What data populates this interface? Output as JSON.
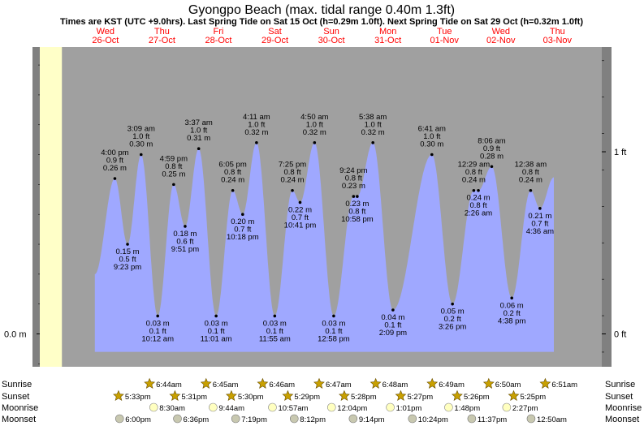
{
  "title": "Gyongpo Beach (max. tidal range 0.40m 1.3ft)",
  "subtitle": "Times are KST (UTC +9.0hrs). Last Spring Tide on Sat 15 Oct (h=0.29m 1.0ft). Next Spring Tide on Sat 29 Oct (h=0.32m 1.0ft)",
  "days": [
    {
      "dow": "Wed",
      "date": "26-Oct"
    },
    {
      "dow": "Thu",
      "date": "27-Oct"
    },
    {
      "dow": "Fri",
      "date": "28-Oct"
    },
    {
      "dow": "Sat",
      "date": "29-Oct"
    },
    {
      "dow": "Sun",
      "date": "30-Oct"
    },
    {
      "dow": "Mon",
      "date": "31-Oct"
    },
    {
      "dow": "Tue",
      "date": "01-Nov"
    },
    {
      "dow": "Wed",
      "date": "02-Nov"
    },
    {
      "dow": "Thu",
      "date": "03-Nov"
    }
  ],
  "colors": {
    "day": "#ffffc8",
    "night": "#a0a0a0",
    "water": "#9fa8ff",
    "frame_dark": "#808080",
    "day_label": "#ff0000",
    "star": "#c8a000",
    "moon_rise": "#ffffc0",
    "moon_set": "#c8c8b0"
  },
  "chart_data": {
    "type": "area",
    "x_unit": "hours from Wed 26-Oct 00:00 KST",
    "left_axis": {
      "ticks": [
        {
          "value": 0,
          "label": "0.0 m"
        }
      ]
    },
    "right_axis": {
      "ticks": [
        {
          "value": 0,
          "label": "0 ft"
        },
        {
          "value": 0.3048,
          "label": "1 ft"
        }
      ]
    },
    "ylim": [
      -0.055,
      0.48
    ],
    "xlim": [
      -19,
      227
    ],
    "data_start": 7.5,
    "data_end": 202.5,
    "extremes": [
      {
        "t": "4:00 pm",
        "m": "0.26 m",
        "f": "0.9 ft",
        "h": 0.26,
        "x": 16.0,
        "pos": "above"
      },
      {
        "t": "9:23 pm",
        "m": "0.15 m",
        "f": "0.5 ft",
        "h": 0.15,
        "x": 21.38,
        "pos": "below"
      },
      {
        "t": "3:09 am",
        "m": "1.0 ft",
        "f": "0.30 m",
        "h": 0.3,
        "x": 27.15,
        "pos": "above"
      },
      {
        "t": "10:12 am",
        "m": "0.03 m",
        "f": "0.1 ft",
        "h": 0.03,
        "x": 34.2,
        "pos": "below"
      },
      {
        "t": "4:59 pm",
        "m": "0.25 m",
        "f": "0.8 ft",
        "h": 0.25,
        "x": 40.98,
        "pos": "above"
      },
      {
        "t": "9:51 pm",
        "m": "0.18 m",
        "f": "0.6 ft",
        "h": 0.18,
        "x": 45.85,
        "pos": "below"
      },
      {
        "t": "3:37 am",
        "m": "0.31 m",
        "f": "1.0 ft",
        "h": 0.31,
        "x": 51.62,
        "pos": "above"
      },
      {
        "t": "11:01 am",
        "m": "0.03 m",
        "f": "0.1 ft",
        "h": 0.03,
        "x": 59.02,
        "pos": "below"
      },
      {
        "t": "6:05 pm",
        "m": "0.24 m",
        "f": "0.8 ft",
        "h": 0.24,
        "x": 66.08,
        "pos": "above"
      },
      {
        "t": "10:18 pm",
        "m": "0.20 m",
        "f": "0.7 ft",
        "h": 0.2,
        "x": 70.3,
        "pos": "below"
      },
      {
        "t": "4:11 am",
        "m": "0.32 m",
        "f": "1.0 ft",
        "h": 0.32,
        "x": 76.18,
        "pos": "above"
      },
      {
        "t": "11:55 am",
        "m": "0.03 m",
        "f": "0.1 ft",
        "h": 0.03,
        "x": 83.92,
        "pos": "below"
      },
      {
        "t": "7:25 pm",
        "m": "0.24 m",
        "f": "0.8 ft",
        "h": 0.24,
        "x": 91.42,
        "pos": "above"
      },
      {
        "t": "10:41 pm",
        "m": "0.22 m",
        "f": "0.7 ft",
        "h": 0.22,
        "x": 94.68,
        "pos": "below"
      },
      {
        "t": "4:50 am",
        "m": "0.32 m",
        "f": "1.0 ft",
        "h": 0.32,
        "x": 100.83,
        "pos": "above"
      },
      {
        "t": "12:58 pm",
        "m": "0.03 m",
        "f": "0.1 ft",
        "h": 0.03,
        "x": 108.97,
        "pos": "below"
      },
      {
        "t": "9:24 pm",
        "m": "0.23 m",
        "f": "0.8 ft",
        "h": 0.23,
        "x": 117.4,
        "pos": "above"
      },
      {
        "t": "10:58 pm",
        "m": "0.23 m",
        "f": "0.8 ft",
        "h": 0.23,
        "x": 118.97,
        "pos": "below"
      },
      {
        "t": "5:38 am",
        "m": "0.32 m",
        "f": "1.0 ft",
        "h": 0.32,
        "x": 125.63,
        "pos": "above"
      },
      {
        "t": "2:09 pm",
        "m": "0.04 m",
        "f": "0.1 ft",
        "h": 0.04,
        "x": 134.15,
        "pos": "below"
      },
      {
        "t": "6:41 am",
        "m": "0.30 m",
        "f": "1.0 ft",
        "h": 0.3,
        "x": 150.68,
        "pos": "above"
      },
      {
        "t": "3:26 pm",
        "m": "0.05 m",
        "f": "0.2 ft",
        "h": 0.05,
        "x": 159.43,
        "pos": "below"
      },
      {
        "t": "12:29 am",
        "m": "0.24 m",
        "f": "0.8 ft",
        "h": 0.24,
        "x": 168.48,
        "pos": "above"
      },
      {
        "t": "2:26 am",
        "m": "0.24 m",
        "f": "0.8 ft",
        "h": 0.24,
        "x": 170.43,
        "pos": "below"
      },
      {
        "t": "8:06 am",
        "m": "0.28 m",
        "f": "0.9 ft",
        "h": 0.28,
        "x": 176.1,
        "pos": "above"
      },
      {
        "t": "4:38 pm",
        "m": "0.06 m",
        "f": "0.2 ft",
        "h": 0.06,
        "x": 184.63,
        "pos": "below"
      },
      {
        "t": "12:38 am",
        "m": "0.24 m",
        "f": "0.8 ft",
        "h": 0.24,
        "x": 192.63,
        "pos": "above"
      },
      {
        "t": "4:36 am",
        "m": "0.21 m",
        "f": "0.7 ft",
        "h": 0.21,
        "x": 196.6,
        "pos": "below"
      }
    ],
    "extreme_labels": [
      [
        "4:00 pm",
        "0.9 ft",
        "0.26 m"
      ],
      [
        "0.15 m",
        "0.5 ft",
        "9:23 pm"
      ],
      [
        "3:09 am",
        "1.0 ft",
        "0.30 m"
      ],
      [
        "0.03 m",
        "0.1 ft",
        "10:12 am"
      ],
      [
        "4:59 pm",
        "0.8 ft",
        "0.25 m"
      ],
      [
        "0.18 m",
        "0.6 ft",
        "9:51 pm"
      ],
      [
        "3:37 am",
        "1.0 ft",
        "0.31 m"
      ],
      [
        "0.03 m",
        "0.1 ft",
        "11:01 am"
      ],
      [
        "6:05 pm",
        "0.8 ft",
        "0.24 m"
      ],
      [
        "0.20 m",
        "0.7 ft",
        "10:18 pm"
      ],
      [
        "4:11 am",
        "1.0 ft",
        "0.32 m"
      ],
      [
        "0.03 m",
        "0.1 ft",
        "11:55 am"
      ],
      [
        "7:25 pm",
        "0.8 ft",
        "0.24 m"
      ],
      [
        "0.22 m",
        "0.7 ft",
        "10:41 pm"
      ],
      [
        "4:50 am",
        "1.0 ft",
        "0.32 m"
      ],
      [
        "0.03 m",
        "0.1 ft",
        "12:58 pm"
      ],
      [
        "9:24 pm",
        "0.8 ft",
        "0.23 m"
      ],
      [
        "0.23 m",
        "0.8 ft",
        "10:58 pm"
      ],
      [
        "5:38 am",
        "1.0 ft",
        "0.32 m"
      ],
      [
        "0.04 m",
        "0.1 ft",
        "2:09 pm"
      ],
      [
        "6:41 am",
        "1.0 ft",
        "0.30 m"
      ],
      [
        "0.05 m",
        "0.2 ft",
        "3:26 pm"
      ],
      [
        "12:29 am",
        "0.8 ft",
        "0.24 m"
      ],
      [
        "0.24 m",
        "0.8 ft",
        "2:26 am"
      ],
      [
        "8:06 am",
        "0.9 ft",
        "0.28 m"
      ],
      [
        "0.06 m",
        "0.2 ft",
        "4:38 pm"
      ],
      [
        "12:38 am",
        "0.8 ft",
        "0.24 m"
      ],
      [
        "0.21 m",
        "0.7 ft",
        "4:36 am"
      ]
    ],
    "sunrise": [
      {
        "x": 30.73,
        "t": "6:44am"
      },
      {
        "x": 54.75,
        "t": "6:45am"
      },
      {
        "x": 78.77,
        "t": "6:46am"
      },
      {
        "x": 102.78,
        "t": "6:47am"
      },
      {
        "x": 126.8,
        "t": "6:48am"
      },
      {
        "x": 150.82,
        "t": "6:49am"
      },
      {
        "x": 174.83,
        "t": "6:50am"
      },
      {
        "x": 198.85,
        "t": "6:51am"
      }
    ],
    "sunset": [
      {
        "x": 17.55,
        "t": "5:33pm"
      },
      {
        "x": 41.52,
        "t": "5:31pm"
      },
      {
        "x": 65.5,
        "t": "5:30pm"
      },
      {
        "x": 89.48,
        "t": "5:29pm"
      },
      {
        "x": 113.47,
        "t": "5:28pm"
      },
      {
        "x": 137.45,
        "t": "5:27pm"
      },
      {
        "x": 161.43,
        "t": "5:26pm"
      },
      {
        "x": 185.42,
        "t": "5:25pm"
      }
    ],
    "moonrise": [
      {
        "x": 32.5,
        "t": "8:30am"
      },
      {
        "x": 57.73,
        "t": "9:44am"
      },
      {
        "x": 82.95,
        "t": "10:57am"
      },
      {
        "x": 108.07,
        "t": "12:04pm"
      },
      {
        "x": 133.02,
        "t": "1:01pm"
      },
      {
        "x": 157.8,
        "t": "1:48pm"
      },
      {
        "x": 182.45,
        "t": "2:27pm"
      }
    ],
    "moonset": [
      {
        "x": 18.0,
        "t": "6:00pm"
      },
      {
        "x": 42.6,
        "t": "6:36pm"
      },
      {
        "x": 67.32,
        "t": "7:19pm"
      },
      {
        "x": 92.2,
        "t": "8:12pm"
      },
      {
        "x": 117.23,
        "t": "9:14pm"
      },
      {
        "x": 142.4,
        "t": "10:24pm"
      },
      {
        "x": 167.62,
        "t": "11:37pm"
      },
      {
        "x": 192.83,
        "t": "12:50am"
      }
    ],
    "rows": [
      "Sunrise",
      "Sunset",
      "Moonrise",
      "Moonset"
    ]
  }
}
